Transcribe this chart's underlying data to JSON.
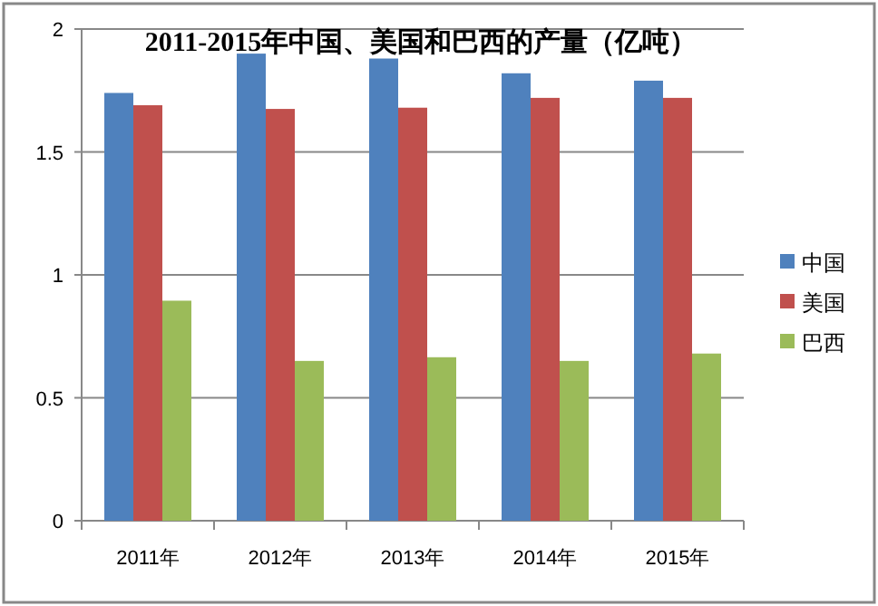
{
  "chart_data": {
    "type": "bar",
    "title": "2011-2015年中国、美国和巴西的产量（亿吨）",
    "categories": [
      "2011年",
      "2012年",
      "2013年",
      "2014年",
      "2015年"
    ],
    "series": [
      {
        "name": "中国",
        "color": "#4f81bd",
        "values": [
          1.74,
          1.9,
          1.88,
          1.82,
          1.79
        ]
      },
      {
        "name": "美国",
        "color": "#c0504d",
        "values": [
          1.69,
          1.675,
          1.68,
          1.72,
          1.72
        ]
      },
      {
        "name": "巴西",
        "color": "#9bbb59",
        "values": [
          0.895,
          0.65,
          0.665,
          0.65,
          0.68
        ]
      }
    ],
    "ylim": [
      0,
      2
    ],
    "yticks": [
      0,
      0.5,
      1,
      1.5,
      2
    ],
    "grid": "y",
    "legend": "right"
  }
}
